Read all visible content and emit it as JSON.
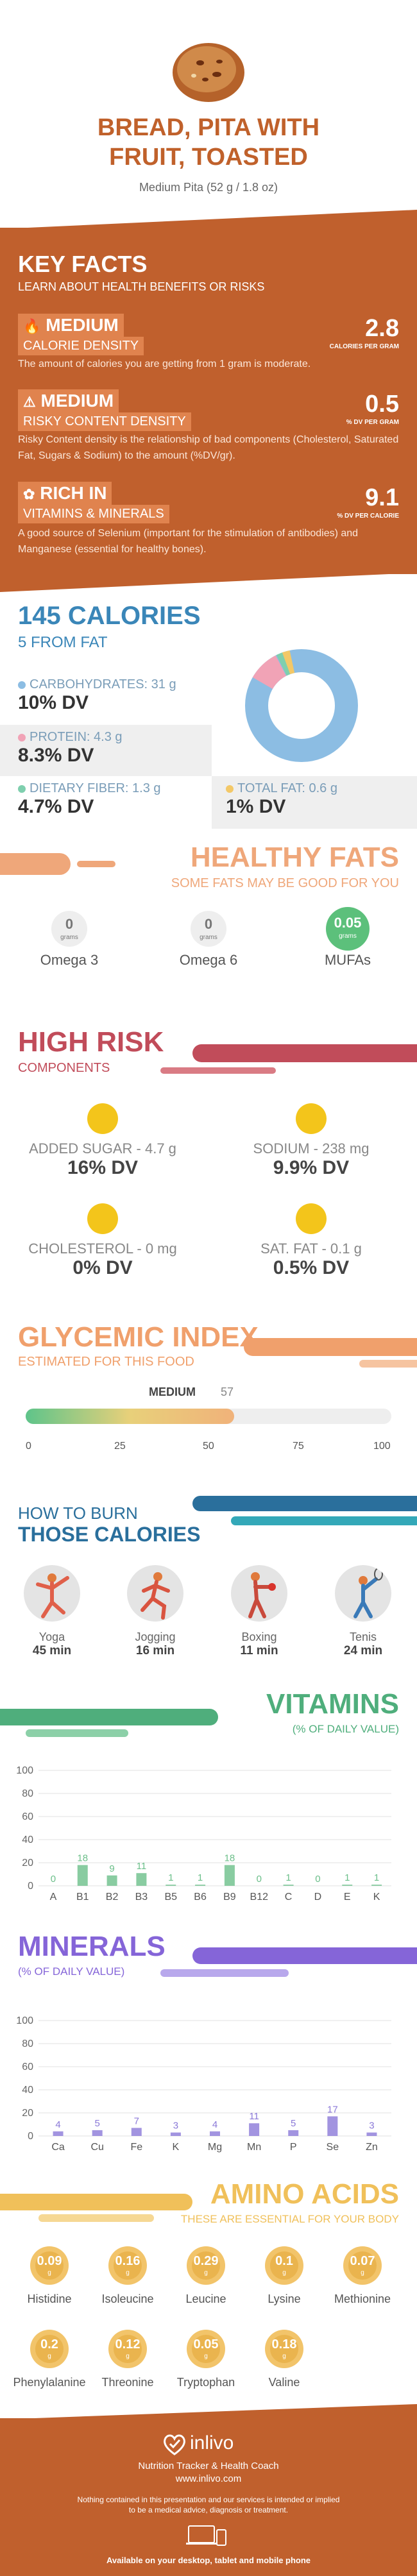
{
  "header": {
    "title_line1": "BREAD, PITA WITH",
    "title_line2": "FRUIT, TOASTED",
    "serving": "Medium Pita (52 g / 1.8 oz)"
  },
  "key_facts": {
    "title": "KEY FACTS",
    "subtitle": "LEARN ABOUT HEALTH BENEFITS OR RISKS",
    "items": [
      {
        "badge": "MEDIUM",
        "label": "CALORIE DENSITY",
        "value": "2.8",
        "unit": "CALORIES PER GRAM",
        "desc": "The amount of calories you are getting from 1 gram is moderate."
      },
      {
        "badge": "MEDIUM",
        "label": "RISKY CONTENT DENSITY",
        "value": "0.5",
        "unit": "% DV PER GRAM",
        "desc": "Risky Content density is the relationship of bad components (Cholesterol, Saturated Fat, Sugars & Sodium) to the amount (%DV/gr)."
      },
      {
        "badge": "RICH  IN",
        "label": "VITAMINS & MINERALS",
        "value": "9.1",
        "unit": "% DV PER CALORIE",
        "desc": "A good source of Selenium (important for the stimulation of antibodies) and Manganese (essential for healthy bones)."
      }
    ]
  },
  "calories": {
    "title": "145 CALORIES",
    "subtitle": "5 FROM FAT",
    "macros": [
      {
        "label": "CARBOHYDRATES: 31 g",
        "dv": "10% DV",
        "color": "#8cbde3"
      },
      {
        "label": "PROTEIN: 4.3 g",
        "dv": "8.3% DV",
        "color": "#f1a3b6"
      },
      {
        "label": "DIETARY FIBER: 1.3 g",
        "dv": "4.7% DV",
        "color": "#7fcfae"
      },
      {
        "label": "TOTAL FAT: 0.6 g",
        "dv": "1% DV",
        "color": "#f3c868"
      }
    ]
  },
  "fats": {
    "title": "HEALTHY FATS",
    "subtitle": "SOME FATS MAY BE GOOD FOR YOU",
    "items": [
      {
        "value": "0",
        "unit": "grams",
        "name": "Omega 3"
      },
      {
        "value": "0",
        "unit": "grams",
        "name": "Omega 6"
      },
      {
        "value": "0.05",
        "unit": "grams",
        "name": "MUFAs"
      }
    ]
  },
  "risk": {
    "title": "HIGH RISK",
    "subtitle": "COMPONENTS",
    "items": [
      {
        "label": "ADDED SUGAR - 4.7 g",
        "dv": "16% DV"
      },
      {
        "label": "SODIUM - 238 mg",
        "dv": "9.9% DV"
      },
      {
        "label": "CHOLESTEROL - 0 mg",
        "dv": "0% DV"
      },
      {
        "label": "SAT. FAT - 0.1 g",
        "dv": "0.5% DV"
      }
    ]
  },
  "glycemic": {
    "title": "GLYCEMIC INDEX",
    "subtitle": "ESTIMATED FOR THIS FOOD",
    "level": "MEDIUM",
    "value": "57",
    "value_num": 57,
    "ticks": [
      "0",
      "25",
      "50",
      "75",
      "100"
    ]
  },
  "burn": {
    "title_line1": "HOW TO BURN",
    "title_line2": "THOSE CALORIES",
    "items": [
      {
        "name": "Yoga",
        "minutes": "45 min"
      },
      {
        "name": "Jogging",
        "minutes": "16 min"
      },
      {
        "name": "Boxing",
        "minutes": "11 min"
      },
      {
        "name": "Tenis",
        "minutes": "24 min"
      }
    ]
  },
  "vitamins": {
    "title": "VITAMINS",
    "subtitle": "(% OF DAILY VALUE)"
  },
  "minerals": {
    "title": "MINERALS",
    "subtitle": "(% OF DAILY VALUE)"
  },
  "chart_data": [
    {
      "type": "bar",
      "categories": [
        "A",
        "B1",
        "B2",
        "B3",
        "B5",
        "B6",
        "B9",
        "B12",
        "C",
        "D",
        "E",
        "K"
      ],
      "values": [
        0,
        18,
        9,
        11,
        1,
        1,
        18,
        0,
        1,
        0,
        1,
        1
      ],
      "labels": [
        "0",
        "18",
        "9",
        "11",
        "1",
        "1",
        "18",
        "0",
        "1",
        "0",
        "1",
        "1"
      ],
      "ylim": [
        0,
        100
      ],
      "yticks": [
        "0",
        "20",
        "40",
        "60",
        "80",
        "100"
      ],
      "color": "#6cbf8a"
    },
    {
      "type": "bar",
      "categories": [
        "Ca",
        "Cu",
        "Fe",
        "K",
        "Mg",
        "Mn",
        "P",
        "Se",
        "Zn"
      ],
      "values": [
        4,
        5,
        7,
        3,
        4,
        11,
        5,
        17,
        3
      ],
      "labels": [
        "4",
        "5",
        "7",
        "3",
        "4",
        "11",
        "5",
        "17",
        "3"
      ],
      "ylim": [
        0,
        100
      ],
      "yticks": [
        "0",
        "20",
        "40",
        "60",
        "80",
        "100"
      ],
      "color": "#8b79d8"
    }
  ],
  "amino": {
    "title": "AMINO ACIDS",
    "subtitle": "THESE ARE ESSENTIAL FOR YOUR BODY",
    "unit": "g",
    "items": [
      {
        "value": "0.09",
        "name": "Histidine"
      },
      {
        "value": "0.16",
        "name": "Isoleucine"
      },
      {
        "value": "0.29",
        "name": "Leucine"
      },
      {
        "value": "0.1",
        "name": "Lysine"
      },
      {
        "value": "0.07",
        "name": "Methionine"
      },
      {
        "value": "0.2",
        "name": "Phenylalanine"
      },
      {
        "value": "0.12",
        "name": "Threonine"
      },
      {
        "value": "0.05",
        "name": "Tryptophan"
      },
      {
        "value": "0.18",
        "name": "Valine"
      }
    ]
  },
  "footer": {
    "brand": "inlivo",
    "tagline": "Nutrition Tracker & Health Coach",
    "site": "www.inlivo.com",
    "disclaimer1": "Nothing contained in this presentation and our services is intended or implied",
    "disclaimer2": "to be a medical advice, diagnosis or treatment.",
    "available": "Available on your desktop, tablet and mobile phone"
  },
  "colors": {
    "accent": "#c0602d",
    "blue": "#3a86b8",
    "peach": "#efa77a",
    "risk": "#c14c5a",
    "glycemic": "#f0a06c",
    "burn": "#2a6f9c",
    "vitamins": "#4fae7c",
    "minerals": "#8565d8",
    "amino": "#f0c05a"
  }
}
